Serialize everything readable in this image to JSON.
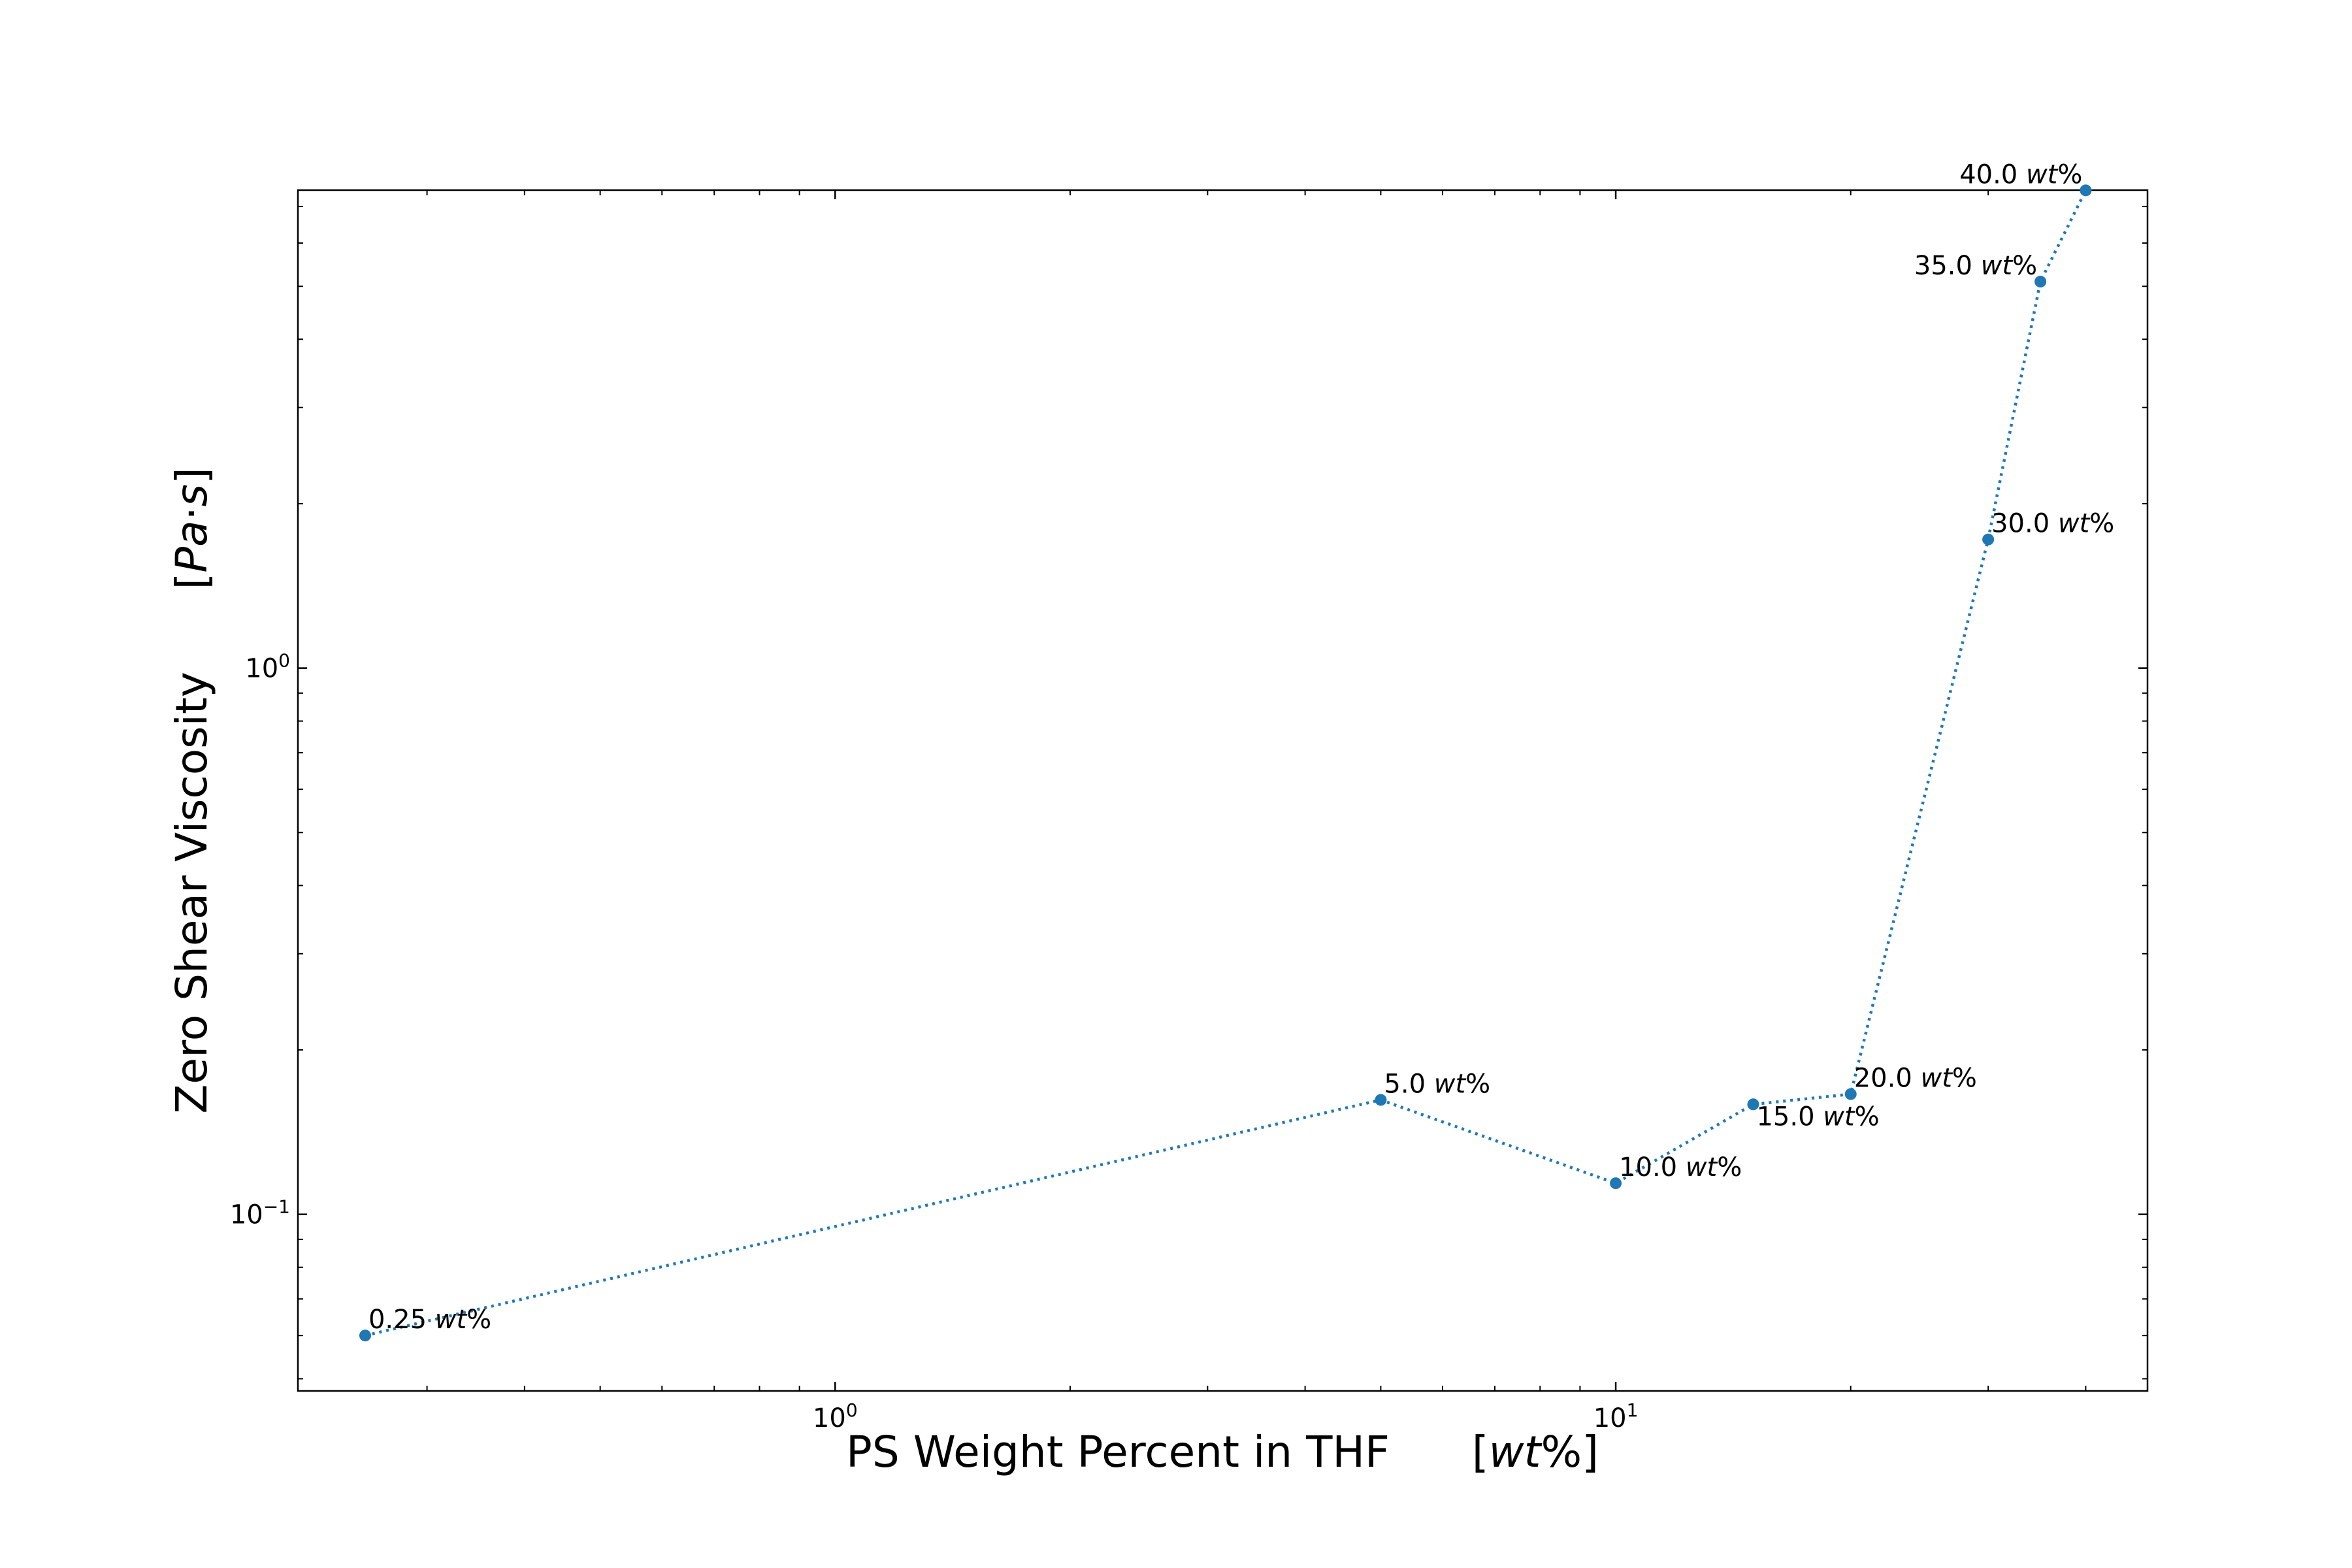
{
  "chart_data": {
    "type": "line",
    "xlabel": "PS Weight Percent in THF    [wt%]",
    "xlabel_parts": {
      "main": "PS Weight Percent in THF",
      "unit_open": "[",
      "unit_italic": "wt",
      "unit_close": "%]"
    },
    "ylabel": "Zero Shear Viscosity    [Pa·s]",
    "ylabel_parts": {
      "main": "Zero Shear Viscosity",
      "unit_open": "[",
      "unit_italic_1": "Pa",
      "unit_dot": "·",
      "unit_italic_2": "s",
      "unit_close": "]"
    },
    "xscale": "log",
    "yscale": "log",
    "xlim": [
      0.205,
      48
    ],
    "ylim": [
      0.0475,
      7.5
    ],
    "x_ticks": [
      {
        "value": 1,
        "base": "10",
        "exp": "0"
      },
      {
        "value": 10,
        "base": "10",
        "exp": "1"
      }
    ],
    "y_ticks": [
      {
        "value": 0.1,
        "base": "10",
        "exp": "−1"
      },
      {
        "value": 1,
        "base": "10",
        "exp": "0"
      }
    ],
    "grid": false,
    "legend": "none",
    "color": "#1f77b4",
    "line_style": "dotted",
    "series": [
      {
        "x": [
          0.25,
          5.0,
          10.0,
          15.0,
          20.0,
          30.0,
          35.0,
          40.0
        ],
        "y": [
          0.06,
          0.162,
          0.114,
          0.159,
          0.166,
          1.72,
          5.1,
          7.85
        ],
        "point_labels": [
          {
            "number": "0.25",
            "unit": "wt",
            "suffix": "%"
          },
          {
            "number": "5.0",
            "unit": "wt",
            "suffix": "%"
          },
          {
            "number": "10.0",
            "unit": "wt",
            "suffix": "%"
          },
          {
            "number": "15.0",
            "unit": "wt",
            "suffix": "%"
          },
          {
            "number": "20.0",
            "unit": "wt",
            "suffix": "%"
          },
          {
            "number": "30.0",
            "unit": "wt",
            "suffix": "%"
          },
          {
            "number": "35.0",
            "unit": "wt",
            "suffix": "%"
          },
          {
            "number": "40.0",
            "unit": "wt",
            "suffix": "%"
          }
        ]
      }
    ]
  }
}
